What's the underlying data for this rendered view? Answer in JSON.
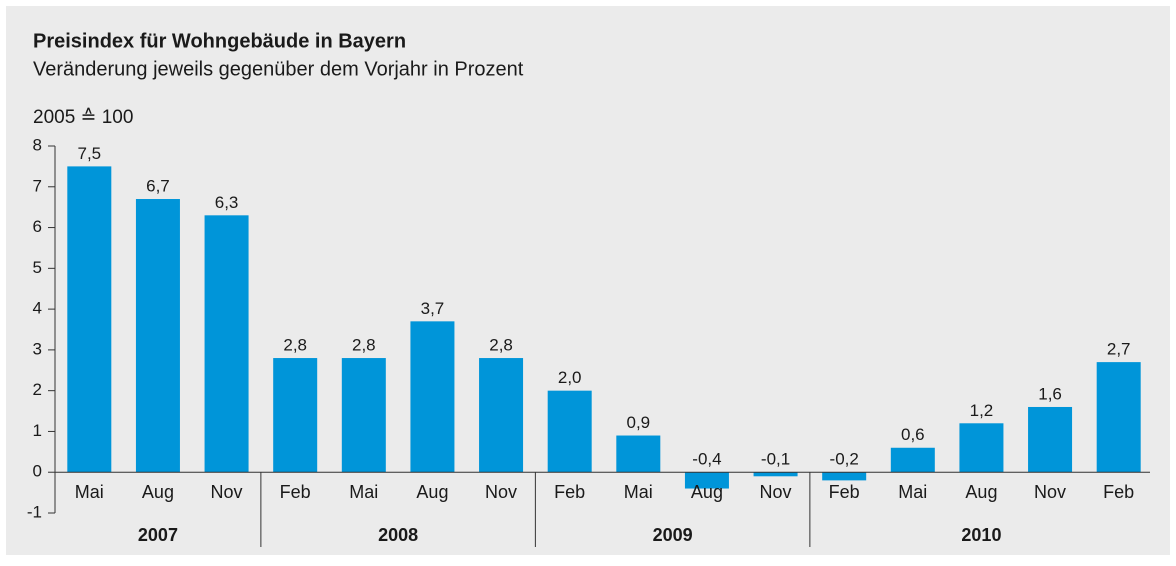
{
  "chart_data": {
    "type": "bar",
    "title": "Preisindex für Wohngebäude in Bayern",
    "subtitle": "Veränderung jeweils gegenüber dem Vorjahr in Prozent",
    "y_label": "2005 ≙ 100",
    "categories": [
      "Mai",
      "Aug",
      "Nov",
      "Feb",
      "Mai",
      "Aug",
      "Nov",
      "Feb",
      "Mai",
      "Aug",
      "Nov",
      "Feb",
      "Mai",
      "Aug",
      "Nov",
      "Feb"
    ],
    "x_groups": [
      "2007",
      "2007",
      "2007",
      "2008",
      "2008",
      "2008",
      "2008",
      "2009",
      "2009",
      "2009",
      "2009",
      "2010",
      "2010",
      "2010",
      "2010",
      "2010"
    ],
    "values": [
      7.5,
      6.7,
      6.3,
      2.8,
      2.8,
      3.7,
      2.8,
      2.0,
      0.9,
      -0.4,
      -0.1,
      -0.2,
      0.6,
      1.2,
      1.6,
      2.7
    ],
    "value_labels": [
      "7,5",
      "6,7",
      "6,3",
      "2,8",
      "2,8",
      "3,7",
      "2,8",
      "2,0",
      "0,9",
      "-0,4",
      "-0,1",
      "-0,2",
      "0,6",
      "1,2",
      "1,6",
      "2,7"
    ],
    "color": "#0095d9",
    "ylim": [
      -1,
      8
    ],
    "yticks": [
      -1,
      0,
      1,
      2,
      3,
      4,
      5,
      6,
      7,
      8
    ]
  }
}
